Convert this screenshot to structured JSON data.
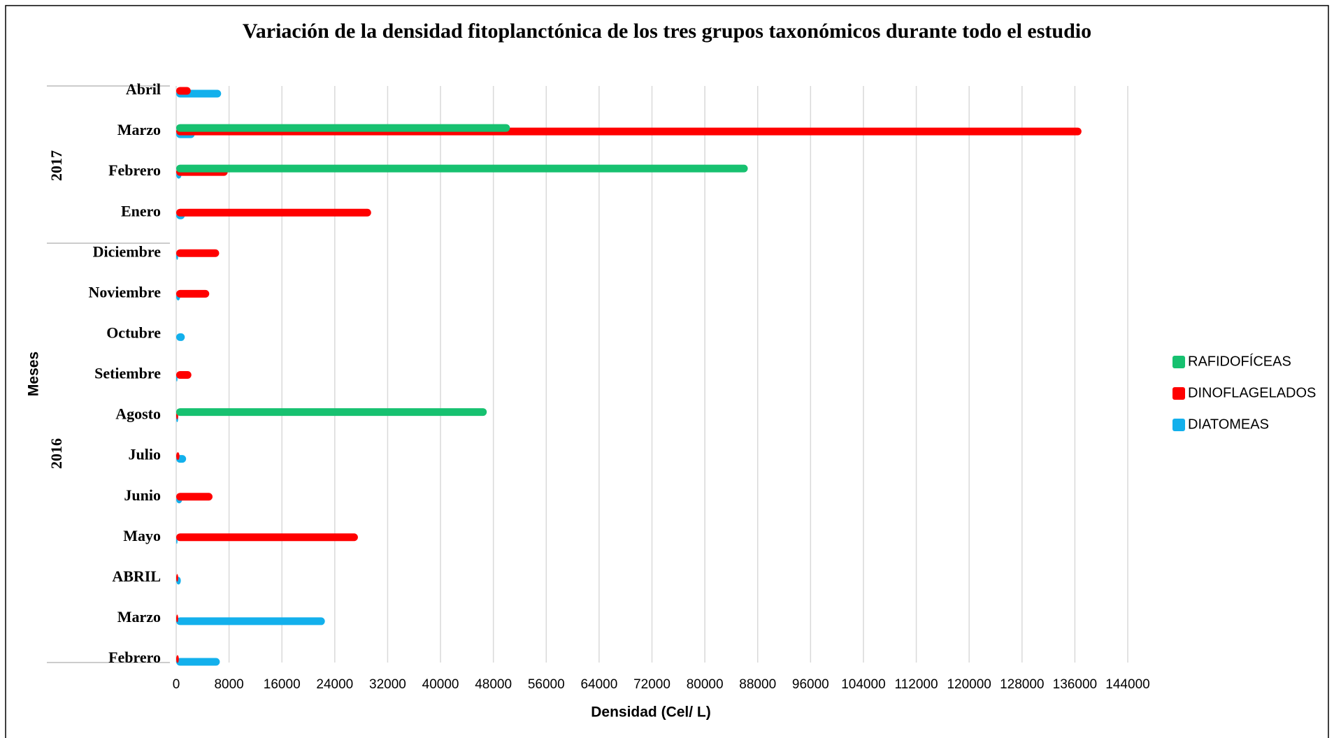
{
  "chart_data": {
    "type": "bar",
    "orientation": "horizontal",
    "title": "Variación de la densidad fitoplanctónica de los tres grupos taxonómicos durante todo el estudio",
    "x_label": "Densidad (Cel/ L)",
    "y_label": "Meses",
    "year_labels": [
      "2016",
      "2017"
    ],
    "categories": [
      "Febrero",
      "Marzo",
      "ABRIL",
      "Mayo",
      "Junio",
      "Julio",
      "Agosto",
      "Setiembre",
      "Octubre",
      "Noviembre",
      "Diciembre",
      "Enero",
      "Febrero",
      "Marzo",
      "Abril"
    ],
    "series": [
      {
        "name": "RAFIDOFÍCEAS",
        "color": "#17c170",
        "values": [
          0,
          0,
          0,
          0,
          0,
          0,
          47000,
          0,
          0,
          0,
          0,
          0,
          86500,
          50500,
          0
        ]
      },
      {
        "name": "DINOFLAGELADOS",
        "color": "#ff0000",
        "values": [
          400,
          300,
          300,
          27500,
          5500,
          500,
          300,
          2300,
          0,
          5000,
          6500,
          29500,
          7800,
          137000,
          2200
        ]
      },
      {
        "name": "DIATOMEAS",
        "color": "#13b0ec",
        "values": [
          6600,
          22500,
          700,
          200,
          900,
          1500,
          300,
          200,
          1300,
          600,
          300,
          1300,
          800,
          2800,
          6800
        ]
      }
    ],
    "xlim": [
      0,
      144000
    ],
    "xticks": [
      0,
      8000,
      16000,
      24000,
      32000,
      40000,
      48000,
      56000,
      64000,
      72000,
      80000,
      88000,
      96000,
      104000,
      112000,
      120000,
      128000,
      136000,
      144000
    ],
    "grid": true,
    "legend": "right"
  }
}
